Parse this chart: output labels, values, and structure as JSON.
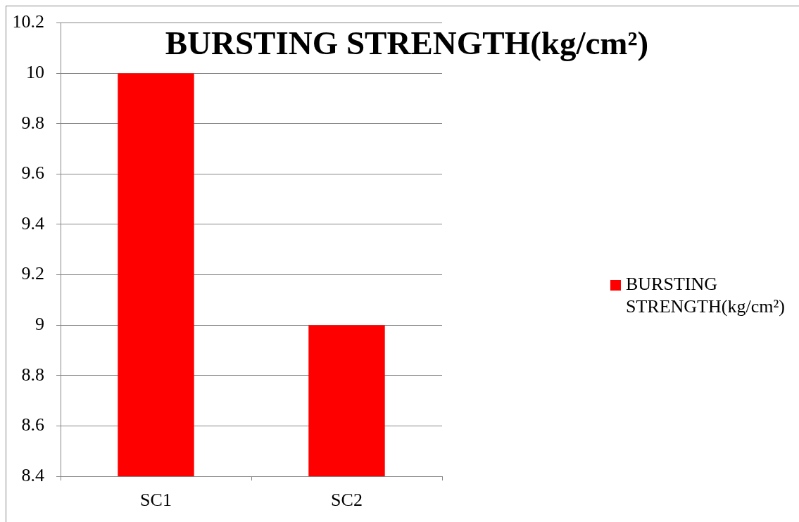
{
  "chart_data": {
    "type": "bar",
    "title": "BURSTING STRENGTH(kg/cm²)",
    "categories": [
      "SC1",
      "SC2"
    ],
    "series": [
      {
        "name": "BURSTING STRENGTH(kg/cm²)",
        "color": "#ff0000",
        "values": [
          10,
          9
        ]
      }
    ],
    "ylim": [
      8.4,
      10.2
    ],
    "yticks": [
      8.4,
      8.6,
      8.8,
      9,
      9.2,
      9.4,
      9.6,
      9.8,
      10,
      10.2
    ],
    "grid": "y",
    "legend": "right"
  }
}
